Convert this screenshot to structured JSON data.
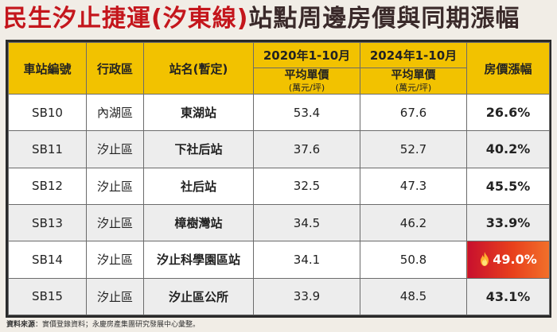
{
  "title": {
    "part1": "民生汐止捷運(汐東線)",
    "part2": "站點周邊房價與同期漲幅"
  },
  "headers": {
    "station_no": "車站編號",
    "district": "行政區",
    "station_name": "站名(暫定)",
    "period1": "2020年1-10月",
    "period2": "2024年1-10月",
    "avg_price": "平均單價",
    "unit": "(萬元/坪)",
    "rise": "房價漲幅"
  },
  "rows": [
    {
      "no": "SB10",
      "district": "內湖區",
      "name": "東湖站",
      "p2020": "53.4",
      "p2024": "67.6",
      "rise": "26.6%"
    },
    {
      "no": "SB11",
      "district": "汐止區",
      "name": "下社后站",
      "p2020": "37.6",
      "p2024": "52.7",
      "rise": "40.2%"
    },
    {
      "no": "SB12",
      "district": "汐止區",
      "name": "社后站",
      "p2020": "32.5",
      "p2024": "47.3",
      "rise": "45.5%"
    },
    {
      "no": "SB13",
      "district": "汐止區",
      "name": "樟樹灣站",
      "p2020": "34.5",
      "p2024": "46.2",
      "rise": "33.9%"
    },
    {
      "no": "SB14",
      "district": "汐止區",
      "name": "汐止科學園區站",
      "p2020": "34.1",
      "p2024": "50.8",
      "rise": "49.0%"
    },
    {
      "no": "SB15",
      "district": "汐止區",
      "name": "汐止區公所",
      "p2020": "33.9",
      "p2024": "48.5",
      "rise": "43.1%"
    }
  ],
  "highlight_icon": "fire-icon",
  "colors": {
    "title_red": "#c4161c",
    "header_yellow": "#f2c200",
    "highlight_red": "#c8102e"
  },
  "source": {
    "label": "資料來源",
    "text": "：實價登錄資料；永慶房產集團研究發展中心彙整。"
  }
}
